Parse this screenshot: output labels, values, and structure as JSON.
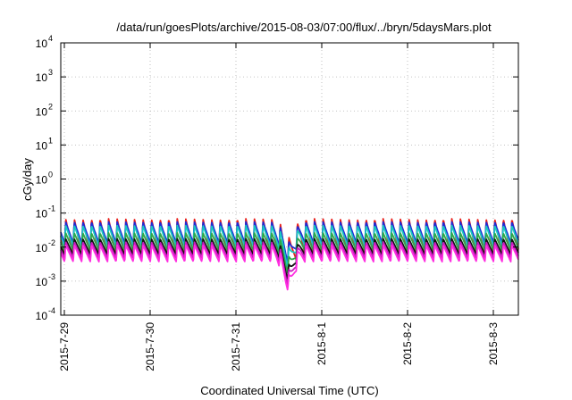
{
  "chart_data": {
    "type": "line",
    "title": "/data/run/goesPlots/archive/2015-08-03/07:00/flux/../bryn/5daysMars.plot",
    "xlabel": "Coordinated Universal Time (UTC)",
    "ylabel": "cGy/day",
    "yscale": "log",
    "ylim": [
      0.0001,
      10000
    ],
    "xlim": [
      "2015-07-28T23:00",
      "2015-08-03T07:00"
    ],
    "grid": true,
    "x_ticks": [
      "2015-7-29",
      "2015-7-30",
      "2015-7-31",
      "2015-8-1",
      "2015-8-2",
      "2015-8-3"
    ],
    "y_ticks": [
      {
        "base": "10",
        "exp": "-4"
      },
      {
        "base": "10",
        "exp": "-3"
      },
      {
        "base": "10",
        "exp": "-2"
      },
      {
        "base": "10",
        "exp": "-1"
      },
      {
        "base": "10",
        "exp": "0"
      },
      {
        "base": "10",
        "exp": "1"
      },
      {
        "base": "10",
        "exp": "2"
      },
      {
        "base": "10",
        "exp": "3"
      },
      {
        "base": "10",
        "exp": "4"
      }
    ],
    "sawtooth_period_hours": 2.4,
    "dip": {
      "center": "2015-07-31T14:45",
      "width_hours": 4,
      "depth_decades": 0.85
    },
    "series": [
      {
        "color": "#e8201c",
        "peak": 0.068,
        "trough": 0.0062
      },
      {
        "color": "#1f2bd6",
        "peak": 0.055,
        "trough": 0.013
      },
      {
        "color": "#19c7c0",
        "peak": 0.043,
        "trough": 0.0105
      },
      {
        "color": "#2ea84a",
        "peak": 0.026,
        "trough": 0.0078
      },
      {
        "color": "#111111",
        "peak": 0.0175,
        "trough": 0.0059
      },
      {
        "color": "#c81cc0",
        "peak": 0.0142,
        "trough": 0.0047
      },
      {
        "color": "#ff2ee0",
        "peak": 0.0115,
        "trough": 0.0037
      }
    ]
  }
}
